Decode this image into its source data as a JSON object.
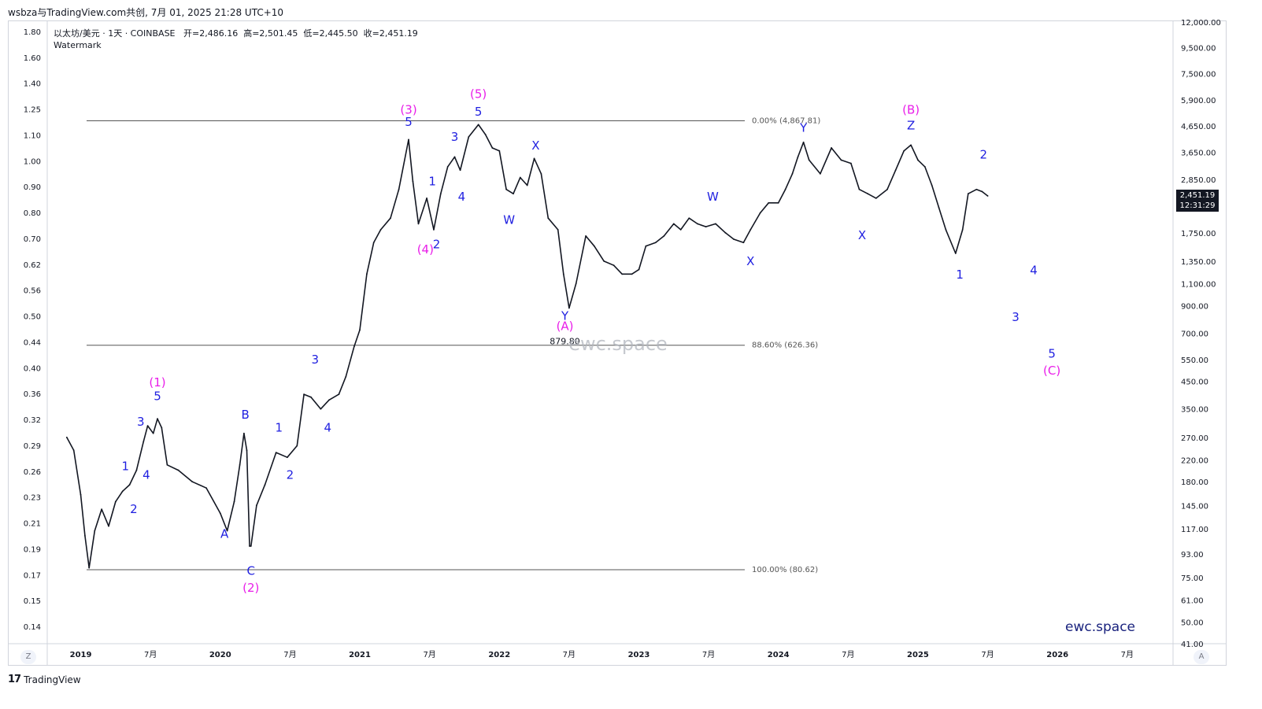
{
  "header": {
    "title": "wsbza与TradingView.com共创, 7月 01, 2025 21:28 UTC+10"
  },
  "legend": {
    "symbol": "以太坊/美元 · 1天 · COINBASE",
    "open": "开=2,486.16",
    "high": "高=2,501.45",
    "low": "低=2,445.50",
    "close": "收=2,451.19",
    "watermark_label": "Watermark"
  },
  "price_tag": {
    "price": "2,451.19",
    "countdown": "12:31:29"
  },
  "watermark": {
    "center": "ewc.space",
    "corner": "ewc.space"
  },
  "corners": {
    "left": "Z",
    "right": "A"
  },
  "brand": {
    "logo": "17",
    "name": "TradingView"
  },
  "colors": {
    "candles": "#131722",
    "wave_blue": "#1f1fe0",
    "wave_magenta": "#e91ee9",
    "fib_line": "#555555"
  },
  "chart_data": {
    "type": "line",
    "title": "以太坊/美元 · 1天 · COINBASE",
    "scale": "log",
    "right_axis_ticks": [
      "12,000.00",
      "9,500.00",
      "7,500.00",
      "5,900.00",
      "4,650.00",
      "3,650.00",
      "2,850.00",
      "1,750.00",
      "1,350.00",
      "1,100.00",
      "900.00",
      "700.00",
      "550.00",
      "450.00",
      "350.00",
      "270.00",
      "220.00",
      "180.00",
      "145.00",
      "117.00",
      "93.00",
      "75.00",
      "61.00",
      "50.00",
      "41.00"
    ],
    "left_axis_ticks": [
      "1.80",
      "1.60",
      "1.40",
      "1.25",
      "1.10",
      "1.00",
      "0.90",
      "0.80",
      "0.70",
      "0.62",
      "0.56",
      "0.50",
      "0.44",
      "0.40",
      "0.36",
      "0.32",
      "0.29",
      "0.26",
      "0.23",
      "0.21",
      "0.19",
      "0.17",
      "0.15",
      "0.14"
    ],
    "x_ticks": [
      "2019",
      "7月",
      "2020",
      "7月",
      "2021",
      "7月",
      "2022",
      "7月",
      "2023",
      "7月",
      "2024",
      "7月",
      "2025",
      "7月",
      "2026",
      "7月"
    ],
    "series": [
      {
        "values": [
          [
            2018.9,
            270
          ],
          [
            2018.95,
            240
          ],
          [
            2019.0,
            160
          ],
          [
            2019.03,
            110
          ],
          [
            2019.06,
            82
          ],
          [
            2019.1,
            115
          ],
          [
            2019.15,
            140
          ],
          [
            2019.2,
            120
          ],
          [
            2019.25,
            150
          ],
          [
            2019.3,
            165
          ],
          [
            2019.35,
            175
          ],
          [
            2019.4,
            200
          ],
          [
            2019.45,
            260
          ],
          [
            2019.48,
            300
          ],
          [
            2019.52,
            280
          ],
          [
            2019.55,
            320
          ],
          [
            2019.58,
            295
          ],
          [
            2019.62,
            210
          ],
          [
            2019.7,
            200
          ],
          [
            2019.8,
            180
          ],
          [
            2019.9,
            170
          ],
          [
            2020.0,
            135
          ],
          [
            2020.05,
            115
          ],
          [
            2020.1,
            150
          ],
          [
            2020.14,
            210
          ],
          [
            2020.17,
            280
          ],
          [
            2020.19,
            240
          ],
          [
            2020.21,
            100
          ],
          [
            2020.22,
            100
          ],
          [
            2020.26,
            145
          ],
          [
            2020.32,
            175
          ],
          [
            2020.4,
            235
          ],
          [
            2020.48,
            225
          ],
          [
            2020.55,
            250
          ],
          [
            2020.6,
            400
          ],
          [
            2020.65,
            390
          ],
          [
            2020.72,
            350
          ],
          [
            2020.78,
            380
          ],
          [
            2020.85,
            400
          ],
          [
            2020.9,
            470
          ],
          [
            2020.96,
            620
          ],
          [
            2021.0,
            720
          ],
          [
            2021.05,
            1200
          ],
          [
            2021.1,
            1600
          ],
          [
            2021.15,
            1800
          ],
          [
            2021.22,
            2000
          ],
          [
            2021.28,
            2600
          ],
          [
            2021.35,
            4100
          ],
          [
            2021.38,
            2800
          ],
          [
            2021.42,
            1900
          ],
          [
            2021.48,
            2400
          ],
          [
            2021.53,
            1800
          ],
          [
            2021.58,
            2500
          ],
          [
            2021.63,
            3200
          ],
          [
            2021.68,
            3500
          ],
          [
            2021.72,
            3100
          ],
          [
            2021.78,
            4200
          ],
          [
            2021.85,
            4700
          ],
          [
            2021.9,
            4300
          ],
          [
            2021.95,
            3800
          ],
          [
            2022.0,
            3700
          ],
          [
            2022.05,
            2600
          ],
          [
            2022.1,
            2500
          ],
          [
            2022.15,
            2900
          ],
          [
            2022.2,
            2700
          ],
          [
            2022.25,
            3450
          ],
          [
            2022.3,
            3000
          ],
          [
            2022.35,
            2000
          ],
          [
            2022.42,
            1800
          ],
          [
            2022.46,
            1200
          ],
          [
            2022.5,
            880
          ],
          [
            2022.55,
            1100
          ],
          [
            2022.62,
            1700
          ],
          [
            2022.68,
            1550
          ],
          [
            2022.75,
            1350
          ],
          [
            2022.82,
            1300
          ],
          [
            2022.88,
            1200
          ],
          [
            2022.95,
            1200
          ],
          [
            2023.0,
            1250
          ],
          [
            2023.05,
            1550
          ],
          [
            2023.12,
            1600
          ],
          [
            2023.18,
            1700
          ],
          [
            2023.25,
            1900
          ],
          [
            2023.3,
            1800
          ],
          [
            2023.36,
            2000
          ],
          [
            2023.42,
            1900
          ],
          [
            2023.48,
            1850
          ],
          [
            2023.55,
            1900
          ],
          [
            2023.62,
            1750
          ],
          [
            2023.68,
            1650
          ],
          [
            2023.75,
            1600
          ],
          [
            2023.8,
            1800
          ],
          [
            2023.87,
            2100
          ],
          [
            2023.93,
            2300
          ],
          [
            2024.0,
            2300
          ],
          [
            2024.05,
            2600
          ],
          [
            2024.1,
            3000
          ],
          [
            2024.14,
            3500
          ],
          [
            2024.18,
            4000
          ],
          [
            2024.22,
            3400
          ],
          [
            2024.3,
            3000
          ],
          [
            2024.38,
            3800
          ],
          [
            2024.45,
            3400
          ],
          [
            2024.52,
            3300
          ],
          [
            2024.58,
            2600
          ],
          [
            2024.64,
            2500
          ],
          [
            2024.7,
            2400
          ],
          [
            2024.78,
            2600
          ],
          [
            2024.84,
            3100
          ],
          [
            2024.9,
            3700
          ],
          [
            2024.95,
            3900
          ],
          [
            2025.0,
            3400
          ],
          [
            2025.05,
            3200
          ],
          [
            2025.1,
            2700
          ],
          [
            2025.15,
            2200
          ],
          [
            2025.2,
            1800
          ],
          [
            2025.27,
            1450
          ],
          [
            2025.32,
            1800
          ],
          [
            2025.36,
            2500
          ],
          [
            2025.42,
            2600
          ],
          [
            2025.46,
            2550
          ],
          [
            2025.5,
            2451
          ]
        ]
      }
    ],
    "horizontal_levels": [
      {
        "label": "0.00% (4,867.81)",
        "value": 4867.81
      },
      {
        "label": "88.60% (626.36)",
        "value": 626.36
      },
      {
        "label": "100.00% (80.62)",
        "value": 80.62
      }
    ],
    "annotations": [
      {
        "text": "(1)",
        "color": "magenta",
        "x": 2019.55,
        "y": 430
      },
      {
        "text": "5",
        "color": "blue",
        "x": 2019.55,
        "y": 380
      },
      {
        "text": "3",
        "color": "blue",
        "x": 2019.43,
        "y": 300
      },
      {
        "text": "1",
        "color": "blue",
        "x": 2019.32,
        "y": 200
      },
      {
        "text": "4",
        "color": "blue",
        "x": 2019.47,
        "y": 185
      },
      {
        "text": "2",
        "color": "blue",
        "x": 2019.38,
        "y": 135
      },
      {
        "text": "B",
        "color": "blue",
        "x": 2020.18,
        "y": 320
      },
      {
        "text": "A",
        "color": "blue",
        "x": 2020.03,
        "y": 108
      },
      {
        "text": "C",
        "color": "blue",
        "x": 2020.22,
        "y": 77
      },
      {
        "text": "(2)",
        "color": "magenta",
        "x": 2020.22,
        "y": 66
      },
      {
        "text": "1",
        "color": "blue",
        "x": 2020.42,
        "y": 285
      },
      {
        "text": "2",
        "color": "blue",
        "x": 2020.5,
        "y": 185
      },
      {
        "text": "3",
        "color": "blue",
        "x": 2020.68,
        "y": 530
      },
      {
        "text": "4",
        "color": "blue",
        "x": 2020.77,
        "y": 285
      },
      {
        "text": "(3)",
        "color": "magenta",
        "x": 2021.35,
        "y": 5200
      },
      {
        "text": "5",
        "color": "blue",
        "x": 2021.35,
        "y": 4650
      },
      {
        "text": "1",
        "color": "blue",
        "x": 2021.52,
        "y": 2700
      },
      {
        "text": "(4)",
        "color": "magenta",
        "x": 2021.47,
        "y": 1450
      },
      {
        "text": "2",
        "color": "blue",
        "x": 2021.55,
        "y": 1520
      },
      {
        "text": "3",
        "color": "blue",
        "x": 2021.68,
        "y": 4050
      },
      {
        "text": "4",
        "color": "blue",
        "x": 2021.73,
        "y": 2350
      },
      {
        "text": "(5)",
        "color": "magenta",
        "x": 2021.85,
        "y": 6000
      },
      {
        "text": "5",
        "color": "blue",
        "x": 2021.85,
        "y": 5100
      },
      {
        "text": "W",
        "color": "blue",
        "x": 2022.07,
        "y": 1900
      },
      {
        "text": "X",
        "color": "blue",
        "x": 2022.26,
        "y": 3750
      },
      {
        "text": "Y",
        "color": "blue",
        "x": 2022.47,
        "y": 790
      },
      {
        "text": "(A)",
        "color": "magenta",
        "x": 2022.47,
        "y": 720
      },
      {
        "text": "879.80",
        "color": "black",
        "x": 2022.47,
        "y": 632
      },
      {
        "text": "W",
        "color": "blue",
        "x": 2023.53,
        "y": 2350
      },
      {
        "text": "X",
        "color": "blue",
        "x": 2023.8,
        "y": 1300
      },
      {
        "text": "Y",
        "color": "blue",
        "x": 2024.18,
        "y": 4400
      },
      {
        "text": "X",
        "color": "blue",
        "x": 2024.6,
        "y": 1650
      },
      {
        "text": "(B)",
        "color": "magenta",
        "x": 2024.95,
        "y": 5200
      },
      {
        "text": "Z",
        "color": "blue",
        "x": 2024.95,
        "y": 4500
      },
      {
        "text": "2",
        "color": "blue",
        "x": 2025.47,
        "y": 3450
      },
      {
        "text": "1",
        "color": "blue",
        "x": 2025.3,
        "y": 1150
      },
      {
        "text": "4",
        "color": "blue",
        "x": 2025.83,
        "y": 1200
      },
      {
        "text": "3",
        "color": "blue",
        "x": 2025.7,
        "y": 780
      },
      {
        "text": "5",
        "color": "blue",
        "x": 2025.96,
        "y": 560
      },
      {
        "text": "(C)",
        "color": "magenta",
        "x": 2025.96,
        "y": 480
      }
    ]
  }
}
